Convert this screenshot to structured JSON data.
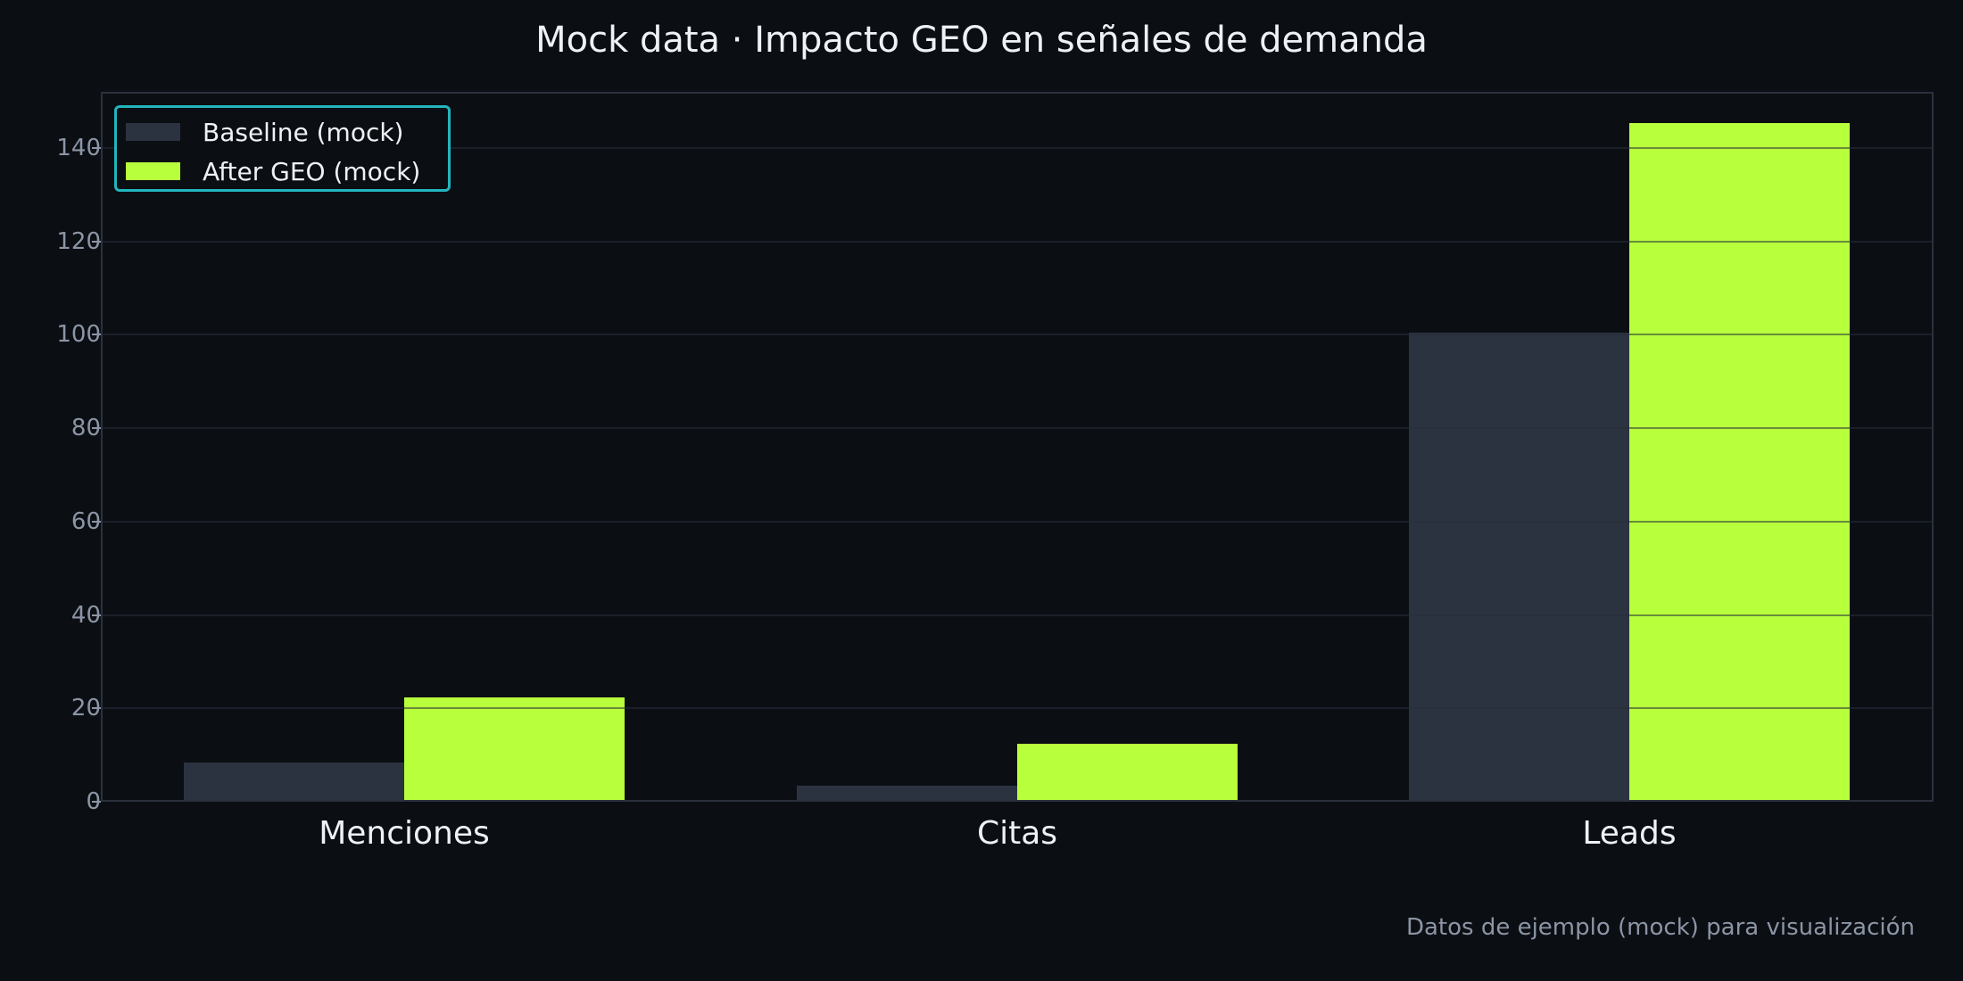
{
  "chart_data": {
    "type": "bar",
    "title": "Mock data · Impacto GEO en señales de demanda",
    "xlabel": "",
    "ylabel": "",
    "categories": [
      "Menciones",
      "Citas",
      "Leads"
    ],
    "series": [
      {
        "name": "Baseline (mock)",
        "color": "#2c3340",
        "values": [
          8,
          3,
          100
        ]
      },
      {
        "name": "After GEO (mock)",
        "color": "#b8ff3c",
        "values": [
          22,
          12,
          145
        ]
      }
    ],
    "ylim": [
      0,
      152
    ],
    "yticks": [
      0,
      20,
      40,
      60,
      80,
      100,
      120,
      140
    ],
    "grid": true,
    "legend_position": "upper left",
    "annotation": "Datos de ejemplo (mock) para visualización"
  },
  "colors": {
    "background": "#0b0e13",
    "baseline": "#2c3340",
    "after_geo": "#b8ff3c",
    "legend_border": "#22b5bd",
    "muted_text": "#8b95a5"
  }
}
